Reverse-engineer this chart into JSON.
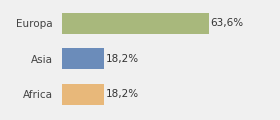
{
  "categories": [
    "Europa",
    "Asia",
    "Africa"
  ],
  "values": [
    63.6,
    18.2,
    18.2
  ],
  "labels": [
    "63,6%",
    "18,2%",
    "18,2%"
  ],
  "colors": [
    "#a8b87c",
    "#6b8cba",
    "#e8b87a"
  ],
  "background_color": "#f0f0f0",
  "xlim": [
    0,
    80
  ],
  "bar_height": 0.6,
  "label_fontsize": 7.5,
  "tick_fontsize": 7.5
}
